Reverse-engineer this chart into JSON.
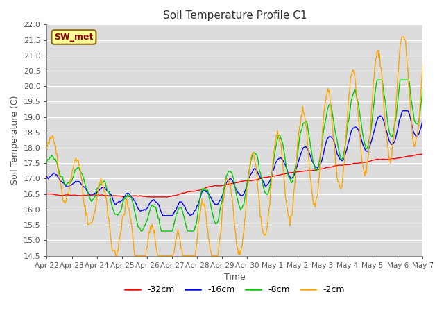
{
  "title": "Soil Temperature Profile C1",
  "xlabel": "Time",
  "ylabel": "Soil Temperature (C)",
  "ylim": [
    14.5,
    22.0
  ],
  "ylim_display": [
    14.5,
    22.0
  ],
  "annotation": "SW_met",
  "annotation_color": "#8B0000",
  "annotation_bg": "#FFFF99",
  "legend_labels": [
    "-32cm",
    "-16cm",
    "-8cm",
    "-2cm"
  ],
  "line_colors": [
    "#FF0000",
    "#0000FF",
    "#00CC00",
    "#FFA500"
  ],
  "plot_bg": "#DCDCDC",
  "x_tick_labels": [
    "Apr 22",
    "Apr 23",
    "Apr 24",
    "Apr 25",
    "Apr 26",
    "Apr 27",
    "Apr 28",
    "Apr 29",
    "Apr 30",
    "May 1",
    "May 2",
    "May 3",
    "May 4",
    "May 5",
    "May 6",
    "May 7"
  ],
  "n_points": 480,
  "seed": 42
}
